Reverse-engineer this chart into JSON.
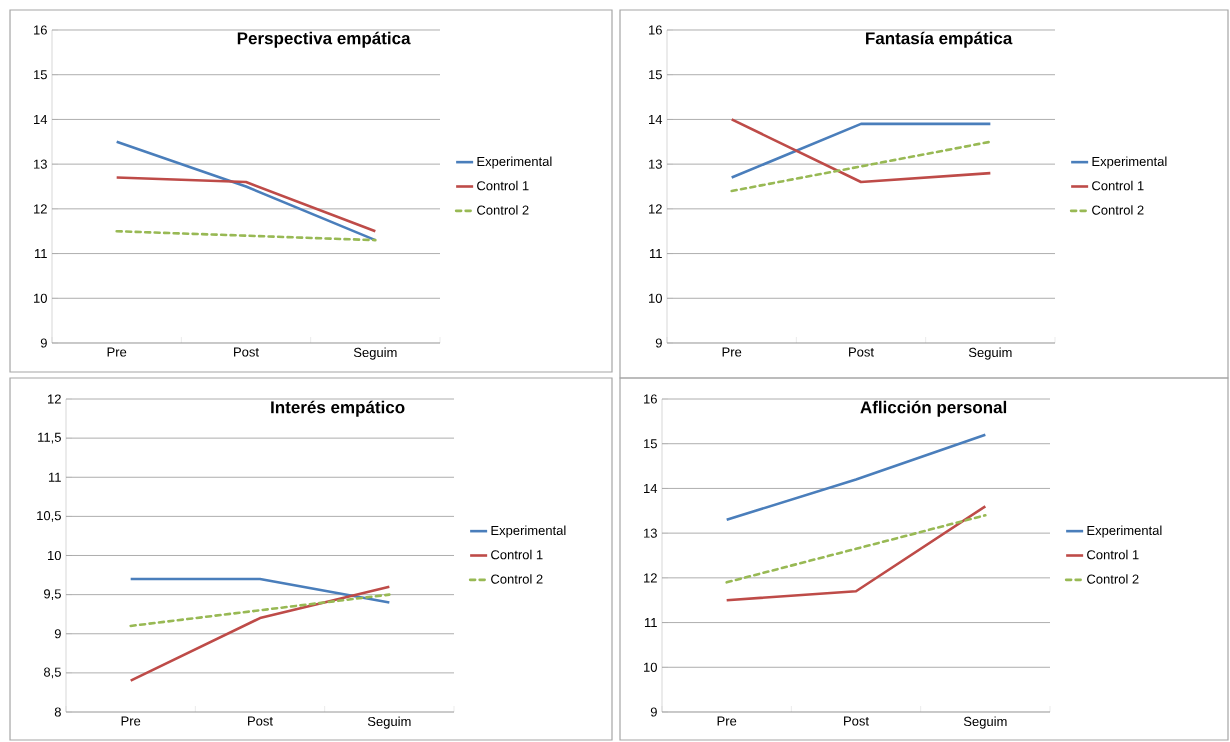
{
  "chart_data": [
    {
      "type": "line",
      "title": "Perspectiva empática",
      "categories": [
        "Pre",
        "Post",
        "Seguim"
      ],
      "ylim": [
        9,
        16
      ],
      "yticks": [
        9,
        10,
        11,
        12,
        13,
        14,
        15,
        16
      ],
      "grid": "y",
      "legend": "right",
      "series": [
        {
          "name": "Experimental",
          "color": "#4a7ebb",
          "values": [
            13.5,
            12.5,
            11.3
          ]
        },
        {
          "name": "Control 1",
          "color": "#be4b48",
          "values": [
            12.7,
            12.6,
            11.5
          ]
        },
        {
          "name": "Control 2",
          "color": "#98b954",
          "line_style": "dashed",
          "values": [
            11.5,
            11.4,
            11.3
          ]
        }
      ]
    },
    {
      "type": "line",
      "title": "Fantasía empática",
      "categories": [
        "Pre",
        "Post",
        "Seguim"
      ],
      "ylim": [
        9,
        16
      ],
      "yticks": [
        9,
        10,
        11,
        12,
        13,
        14,
        15,
        16
      ],
      "grid": "y",
      "legend": "right",
      "series": [
        {
          "name": "Experimental",
          "color": "#4a7ebb",
          "values": [
            12.7,
            13.9,
            13.9
          ]
        },
        {
          "name": "Control 1",
          "color": "#be4b48",
          "values": [
            14.0,
            12.6,
            12.8
          ]
        },
        {
          "name": "Control 2",
          "color": "#98b954",
          "line_style": "dashed",
          "values": [
            12.4,
            12.95,
            13.5
          ]
        }
      ]
    },
    {
      "type": "line",
      "title": "Interés empático",
      "categories": [
        "Pre",
        "Post",
        "Seguim"
      ],
      "ylim": [
        8,
        12
      ],
      "yticks": [
        8,
        {
          "value": 8.5,
          "label": "8,5"
        },
        9,
        {
          "value": 9.5,
          "label": "9,5"
        },
        10,
        {
          "value": 10.5,
          "label": "10,5"
        },
        11,
        {
          "value": 11.5,
          "label": "11,5"
        },
        12
      ],
      "grid": "y",
      "legend": "right",
      "series": [
        {
          "name": "Experimental",
          "color": "#4a7ebb",
          "values": [
            9.7,
            9.7,
            9.4
          ]
        },
        {
          "name": "Control 1",
          "color": "#be4b48",
          "values": [
            8.4,
            9.2,
            9.6
          ]
        },
        {
          "name": "Control 2",
          "color": "#98b954",
          "line_style": "dashed",
          "values": [
            9.1,
            9.3,
            9.5
          ]
        }
      ]
    },
    {
      "type": "line",
      "title": "Aflicción personal",
      "categories": [
        "Pre",
        "Post",
        "Seguim"
      ],
      "ylim": [
        9,
        16
      ],
      "yticks": [
        9,
        10,
        11,
        12,
        13,
        14,
        15,
        16
      ],
      "grid": "y",
      "legend": "right",
      "series": [
        {
          "name": "Experimental",
          "color": "#4a7ebb",
          "values": [
            13.3,
            14.2,
            15.2
          ]
        },
        {
          "name": "Control 1",
          "color": "#be4b48",
          "values": [
            11.5,
            11.7,
            13.6
          ]
        },
        {
          "name": "Control 2",
          "color": "#98b954",
          "line_style": "dashed",
          "values": [
            11.9,
            12.65,
            13.4
          ]
        }
      ]
    }
  ]
}
